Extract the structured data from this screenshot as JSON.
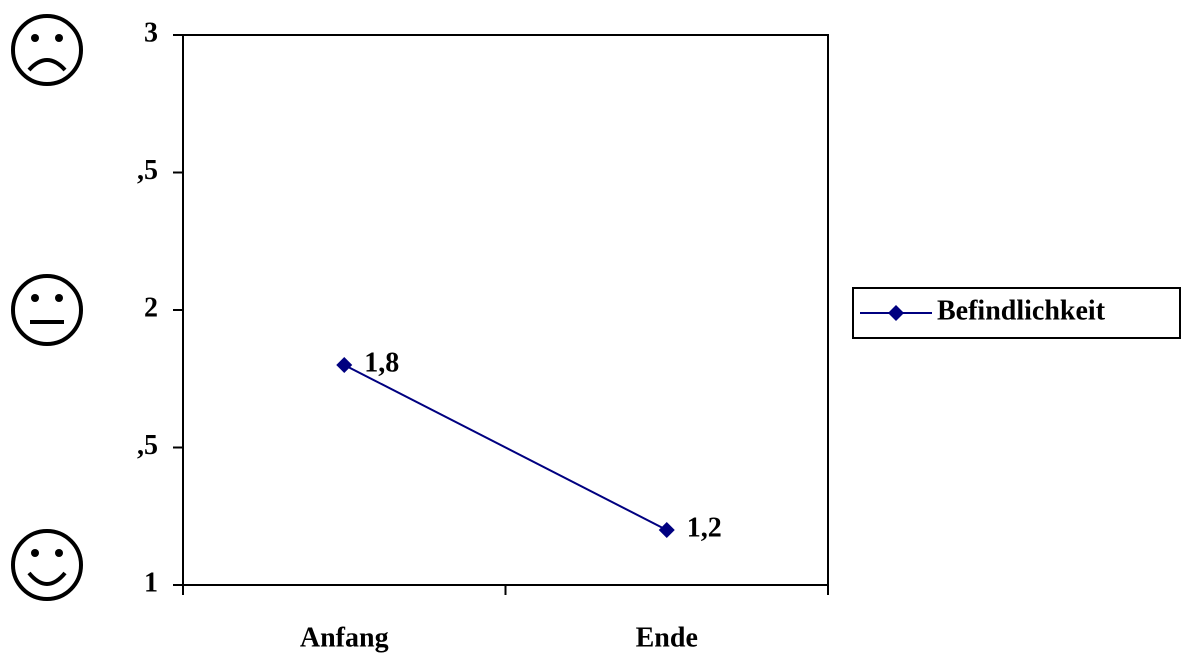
{
  "chart_data": {
    "type": "line",
    "categories": [
      "Anfang",
      "Ende"
    ],
    "series": [
      {
        "name": "Befindlichkeit",
        "color": "#000080",
        "values": [
          1.8,
          1.2
        ],
        "value_labels": [
          "1,8",
          "1,2"
        ]
      }
    ],
    "ylim": [
      1,
      3
    ],
    "yticks": [
      1,
      {
        "value": 1.5,
        "label": ",5"
      },
      2,
      {
        "value": 2.5,
        "label": ",5"
      },
      3
    ],
    "legend": "right"
  }
}
